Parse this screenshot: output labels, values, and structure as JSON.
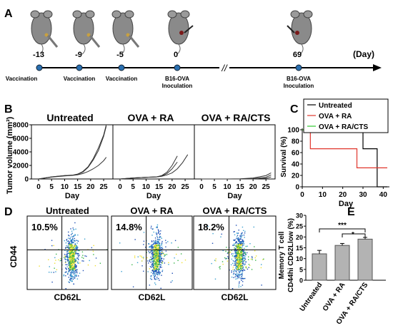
{
  "panels": {
    "A": "A",
    "B": "B",
    "C": "C",
    "D": "D",
    "E": "E"
  },
  "timeline": {
    "unit": "(Day)",
    "days": [
      "-13",
      "-9",
      "-5",
      "0",
      "69"
    ],
    "events": [
      {
        "day": "-13",
        "label": [
          "Vaccination"
        ],
        "type": "vaccination"
      },
      {
        "day": "-9",
        "label": [
          "Vaccination"
        ],
        "type": "vaccination"
      },
      {
        "day": "-5",
        "label": [
          "Vaccination"
        ],
        "type": "vaccination"
      },
      {
        "day": "0",
        "label": [
          "B16-OVA",
          "Inoculation"
        ],
        "type": "inoculation"
      },
      {
        "day": "69",
        "label": [
          "B16-OVA",
          "Inoculation"
        ],
        "type": "inoculation"
      }
    ],
    "break_symbol": "//"
  },
  "panel_b": {
    "ylabel": "Tumor volume (mm³)",
    "xlabel": "Day",
    "groups": [
      "Untreated",
      "OVA + RA",
      "OVA + RA/CTS"
    ]
  },
  "panel_c": {
    "ylabel": "Survival (%)",
    "xlabel": "Day",
    "legend": [
      "Untreated",
      "OVA + RA",
      "OVA + RA/CTS"
    ]
  },
  "panel_d": {
    "groups": [
      "Untreated",
      "OVA + RA",
      "OVA + RA/CTS"
    ],
    "percents": [
      "10.5%",
      "14.8%",
      "18.2%"
    ],
    "xlabel": "CD62L",
    "ylabel": "CD44"
  },
  "panel_e": {
    "ylabel1": "Memory T cell",
    "ylabel2": "CD44hi CD62Llow (%)",
    "sig": [
      "***",
      "*"
    ]
  },
  "chart_data": [
    {
      "type": "line",
      "title": "Untreated",
      "xlabel": "Day",
      "ylabel": "Tumor volume (mm³)",
      "xlim": [
        0,
        28
      ],
      "ylim": [
        0,
        8000
      ],
      "xticks": [
        0,
        5,
        10,
        15,
        20,
        25
      ],
      "yticks": [
        0,
        2000,
        4000,
        6000,
        8000
      ],
      "series": [
        {
          "x": [
            0,
            5,
            10,
            13,
            15,
            17,
            19,
            21,
            23,
            25,
            26
          ],
          "values": [
            0,
            300,
            500,
            560,
            700,
            1000,
            1700,
            2800,
            4200,
            6300,
            7800
          ]
        },
        {
          "x": [
            0,
            5,
            10,
            13,
            15,
            17,
            19,
            21,
            23,
            25,
            26
          ],
          "values": [
            0,
            320,
            500,
            560,
            720,
            1100,
            1800,
            3000,
            4600,
            6500,
            8000
          ]
        },
        {
          "x": [
            0,
            5,
            10,
            13,
            15,
            17,
            19,
            21,
            23,
            25,
            26
          ],
          "values": [
            0,
            280,
            450,
            520,
            620,
            800,
            1100,
            1500,
            2000,
            2700,
            3200
          ]
        }
      ]
    },
    {
      "type": "line",
      "title": "OVA + RA",
      "xlabel": "Day",
      "xlim": [
        0,
        28
      ],
      "ylim": [
        0,
        8000
      ],
      "xticks": [
        0,
        5,
        10,
        15,
        20,
        25
      ],
      "series": [
        {
          "x": [
            0,
            5,
            10,
            14,
            16,
            18,
            20,
            22
          ],
          "values": [
            0,
            150,
            250,
            300,
            500,
            1000,
            2000,
            3400
          ]
        },
        {
          "x": [
            0,
            5,
            10,
            14,
            16,
            18,
            20,
            22,
            24,
            26
          ],
          "values": [
            0,
            150,
            250,
            300,
            400,
            600,
            900,
            1500,
            2400,
            3600
          ]
        },
        {
          "x": [
            0,
            5,
            10,
            14,
            16,
            18,
            20,
            22
          ],
          "values": [
            0,
            150,
            250,
            300,
            450,
            800,
            1500,
            2500
          ]
        }
      ]
    },
    {
      "type": "line",
      "title": "OVA + RA/CTS",
      "xlabel": "Day",
      "xlim": [
        0,
        28
      ],
      "ylim": [
        0,
        8000
      ],
      "xticks": [
        0,
        5,
        10,
        15,
        20,
        25
      ],
      "series": [
        {
          "x": [
            0,
            5,
            10,
            15,
            20,
            25,
            27
          ],
          "values": [
            0,
            0,
            0,
            20,
            150,
            500,
            900
          ]
        },
        {
          "x": [
            0,
            5,
            10,
            15,
            20,
            25,
            27
          ],
          "values": [
            0,
            0,
            0,
            0,
            50,
            250,
            600
          ]
        },
        {
          "x": [
            0,
            5,
            10,
            15,
            20,
            25,
            27
          ],
          "values": [
            0,
            0,
            0,
            0,
            0,
            100,
            300
          ]
        }
      ]
    },
    {
      "type": "line",
      "title": "",
      "xlabel": "Day",
      "ylabel": "Survival (%)",
      "xlim": [
        0,
        42
      ],
      "ylim": [
        0,
        100
      ],
      "xticks": [
        0,
        10,
        20,
        30,
        40
      ],
      "yticks": [
        0,
        20,
        40,
        60,
        80,
        100
      ],
      "series": [
        {
          "name": "Untreated",
          "color": "#000000",
          "x": [
            0,
            30,
            30,
            37,
            37,
            42
          ],
          "values": [
            100,
            100,
            66.7,
            66.7,
            0,
            0
          ]
        },
        {
          "name": "OVA + RA",
          "color": "#e0352b",
          "x": [
            0,
            4,
            4,
            27,
            27,
            42
          ],
          "values": [
            100,
            100,
            66.7,
            66.7,
            33.3,
            33.3
          ]
        },
        {
          "name": "OVA + RA/CTS",
          "color": "#2ec72e",
          "x": [
            0,
            42
          ],
          "values": [
            100,
            100
          ]
        }
      ]
    },
    {
      "type": "bar",
      "title": "",
      "xlabel": "",
      "ylabel": "Memory T cell CD44hi CD62Llow (%)",
      "categories": [
        "Untreated",
        "OVA + RA",
        "OVA + RA/CTS"
      ],
      "values": [
        12.2,
        16.1,
        19.0
      ],
      "errors": [
        1.6,
        0.9,
        0.8
      ],
      "ylim": [
        0,
        30
      ],
      "yticks": [
        0,
        5,
        10,
        15,
        20,
        25,
        30
      ]
    }
  ]
}
